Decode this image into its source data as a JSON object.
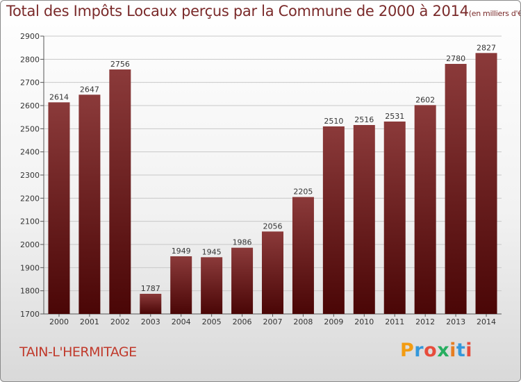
{
  "title": "Total des Impôts Locaux perçus par la Commune de 2000 à 2014",
  "title_unit": "(en milliers d'€)",
  "commune": "TAIN-L'HERMITAGE",
  "logo": {
    "text": "Proxiti",
    "letters": [
      "P",
      "r",
      "o",
      "x",
      "i",
      "t",
      "i"
    ],
    "colors": [
      "#f39c12",
      "#3498db",
      "#e74c3c",
      "#27ae60",
      "#e67e22",
      "#3498db",
      "#e74c3c"
    ]
  },
  "colors": {
    "bar_top": "#8b3a3a",
    "bar_bottom": "#4a0606",
    "title": "#7a2a2a",
    "commune": "#c0392b",
    "grid": "#c8c8c8"
  },
  "chart_data": {
    "type": "bar",
    "title": "Total des Impôts Locaux perçus par la Commune de 2000 à 2014",
    "ylabel": "en milliers d'€",
    "xlabel": "",
    "categories": [
      "2000",
      "2001",
      "2002",
      "2003",
      "2004",
      "2005",
      "2006",
      "2007",
      "2008",
      "2009",
      "2010",
      "2011",
      "2012",
      "2013",
      "2014"
    ],
    "values": [
      2614,
      2647,
      2756,
      1787,
      1949,
      1945,
      1986,
      2056,
      2205,
      2510,
      2516,
      2531,
      2602,
      2780,
      2827
    ],
    "ylim": [
      1700,
      2900
    ],
    "yticks": [
      1700,
      1800,
      1900,
      2000,
      2100,
      2200,
      2300,
      2400,
      2500,
      2600,
      2700,
      2800,
      2900
    ],
    "grid": true
  }
}
